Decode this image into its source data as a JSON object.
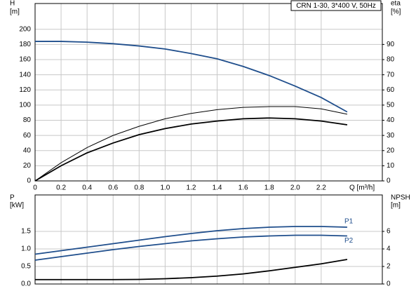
{
  "chart_data": [
    {
      "type": "line",
      "title": "CRN 1-30, 3*400 V, 50Hz",
      "ylabel": "H",
      "yunit": "[m]",
      "y2label": "eta",
      "y2unit": "[%]",
      "xlabel": "Q [m³/h]",
      "xlim": [
        0,
        2.67
      ],
      "ylim": [
        0,
        234
      ],
      "y2lim": [
        0,
        117
      ],
      "xticks": [
        0,
        0.2,
        0.4,
        0.6,
        0.8,
        {
          "value": 1,
          "label": "1.0"
        },
        1.2,
        1.4,
        1.6,
        1.8,
        {
          "value": 2,
          "label": "2.0"
        },
        2.2
      ],
      "yticks": [
        0,
        20,
        40,
        60,
        80,
        100,
        120,
        140,
        160,
        180,
        200
      ],
      "y2ticks": [
        0,
        10,
        20,
        30,
        40,
        50,
        60,
        70,
        80,
        90
      ],
      "grid": true,
      "x": [
        0,
        0.2,
        0.4,
        0.6,
        0.8,
        1.0,
        1.2,
        1.4,
        1.6,
        1.8,
        2.0,
        2.2,
        2.4
      ],
      "series": [
        {
          "color": "#1f4e8c",
          "values": [
            184,
            184,
            183,
            181,
            178,
            174,
            168,
            161,
            151,
            139,
            125,
            110,
            91
          ]
        },
        {
          "color": "#000000",
          "axis": "y2",
          "values": [
            0,
            10,
            18.5,
            25,
            30.5,
            34.5,
            37.5,
            39.5,
            41,
            41.5,
            41,
            39.5,
            37
          ]
        },
        {
          "color": "#000000",
          "axis": "y2",
          "values": [
            0,
            12,
            22,
            30,
            36,
            41,
            44.5,
            47,
            48.5,
            49,
            49,
            47.5,
            44
          ]
        }
      ]
    },
    {
      "type": "line",
      "ylabel": "P",
      "yunit": "[kW]",
      "y2label": "NPSH",
      "y2unit": "[m]",
      "xlim": [
        0,
        2.67
      ],
      "ylim": [
        0,
        2.54
      ],
      "y2lim": [
        0,
        10.16
      ],
      "xticks": [
        0,
        0.2,
        0.4,
        0.6,
        0.8,
        1.0,
        1.2,
        1.4,
        1.6,
        1.8,
        2.0,
        2.2
      ],
      "yticks": [
        {
          "value": 0,
          "label": "0.0"
        },
        0.5,
        {
          "value": 1,
          "label": "1.0"
        },
        1.5
      ],
      "y2ticks": [
        0,
        2,
        4,
        6
      ],
      "grid": true,
      "x": [
        0,
        0.2,
        0.4,
        0.6,
        0.8,
        1.0,
        1.2,
        1.4,
        1.6,
        1.8,
        2.0,
        2.2,
        2.4
      ],
      "series": [
        {
          "name": "P1",
          "color": "#1f4e8c",
          "values": [
            0.85,
            0.95,
            1.05,
            1.15,
            1.25,
            1.35,
            1.44,
            1.52,
            1.58,
            1.62,
            1.64,
            1.64,
            1.62
          ]
        },
        {
          "name": "P2",
          "color": "#1f4e8c",
          "values": [
            0.68,
            0.78,
            0.88,
            0.98,
            1.07,
            1.15,
            1.23,
            1.29,
            1.34,
            1.37,
            1.39,
            1.39,
            1.37
          ]
        },
        {
          "color": "#000000",
          "axis": "y2",
          "values": [
            0.5,
            0.5,
            0.5,
            0.5,
            0.52,
            0.6,
            0.72,
            0.9,
            1.15,
            1.5,
            1.9,
            2.3,
            2.8
          ]
        }
      ]
    }
  ]
}
